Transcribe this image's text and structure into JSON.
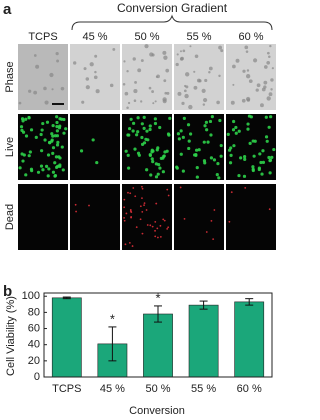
{
  "panel_a": {
    "label": "a",
    "title": "Conversion Gradient",
    "columns": [
      "TCPS",
      "45 %",
      "50 %",
      "55 %",
      "60 %"
    ],
    "rows": [
      "Phase",
      "Live",
      "Dead"
    ]
  },
  "chart_data": {
    "type": "bar",
    "panel_label": "b",
    "x_label": "Conversion",
    "y_label": "Cell Viability (%)",
    "categories": [
      "TCPS",
      "45 %",
      "50 %",
      "55 %",
      "60 %"
    ],
    "values": [
      98,
      41,
      78,
      89,
      93
    ],
    "errors": [
      1,
      21,
      10,
      5,
      4
    ],
    "markers": [
      null,
      "*",
      "*",
      null,
      null
    ],
    "color": "#1ba77a",
    "ylim": [
      0,
      104
    ],
    "yticks": [
      0,
      20,
      40,
      60,
      80,
      100
    ]
  }
}
